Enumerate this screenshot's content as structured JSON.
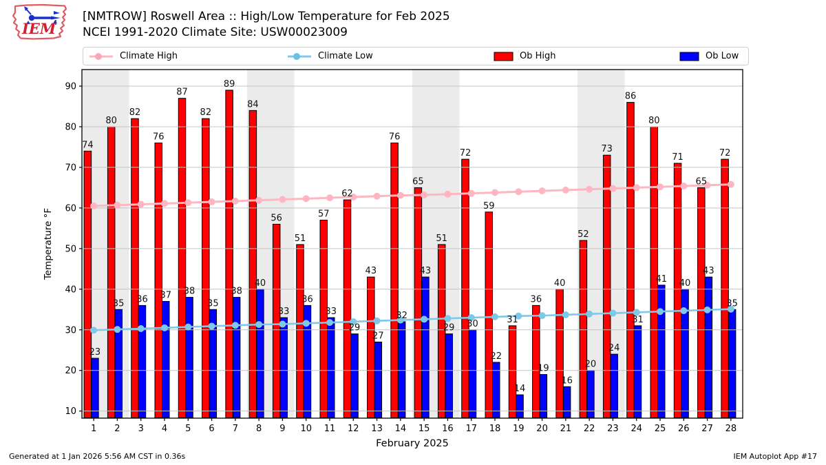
{
  "header": {
    "title_line1": "[NMTROW] Roswell Area :: High/Low Temperature for Feb 2025",
    "title_line2": "NCEI 1991-2020 Climate Site: USW00023009",
    "logo_text": "IEM"
  },
  "legend": {
    "items": [
      {
        "label": "Climate High",
        "swatch": "line-marker",
        "color": "#ffb6c1"
      },
      {
        "label": "Climate Low",
        "swatch": "line-marker",
        "color": "#7ec8e8"
      },
      {
        "label": "Ob High",
        "swatch": "rect",
        "color": "#ff0000"
      },
      {
        "label": "Ob Low",
        "swatch": "rect",
        "color": "#0000ff"
      }
    ]
  },
  "chart_data": {
    "type": "bar",
    "title": "[NMTROW] Roswell Area :: High/Low Temperature for Feb 2025",
    "subtitle": "NCEI 1991-2020 Climate Site: USW00023009",
    "xlabel": "February 2025",
    "ylabel": "Temperature °F",
    "x": [
      1,
      2,
      3,
      4,
      5,
      6,
      7,
      8,
      9,
      10,
      11,
      12,
      13,
      14,
      15,
      16,
      17,
      18,
      19,
      20,
      21,
      22,
      23,
      24,
      25,
      26,
      27,
      28
    ],
    "series": [
      {
        "name": "Ob High",
        "type": "bar",
        "color": "#ff0000",
        "values": [
          74,
          80,
          82,
          76,
          87,
          82,
          89,
          84,
          56,
          51,
          57,
          62,
          43,
          76,
          65,
          51,
          72,
          59,
          31,
          36,
          40,
          52,
          73,
          86,
          80,
          71,
          65,
          72
        ]
      },
      {
        "name": "Ob Low",
        "type": "bar",
        "color": "#0000ff",
        "values": [
          23,
          35,
          36,
          37,
          38,
          35,
          38,
          40,
          33,
          36,
          33,
          29,
          27,
          32,
          43,
          29,
          30,
          22,
          14,
          19,
          16,
          20,
          24,
          31,
          41,
          40,
          43,
          35
        ]
      },
      {
        "name": "Climate High",
        "type": "line",
        "color": "#ffb6c1",
        "values": [
          60.5,
          60.7,
          60.9,
          61.1,
          61.3,
          61.5,
          61.7,
          61.9,
          62.1,
          62.3,
          62.5,
          62.7,
          62.9,
          63.1,
          63.2,
          63.4,
          63.6,
          63.8,
          64.0,
          64.2,
          64.4,
          64.6,
          64.8,
          65.0,
          65.2,
          65.4,
          65.6,
          65.8
        ]
      },
      {
        "name": "Climate Low",
        "type": "line",
        "color": "#7ec8e8",
        "values": [
          29.9,
          30.1,
          30.3,
          30.5,
          30.7,
          30.9,
          31.1,
          31.3,
          31.4,
          31.6,
          31.8,
          32.0,
          32.2,
          32.4,
          32.6,
          32.8,
          33.0,
          33.2,
          33.4,
          33.5,
          33.7,
          33.9,
          34.1,
          34.3,
          34.5,
          34.7,
          34.9,
          35.1
        ]
      }
    ],
    "yticks": [
      10,
      20,
      30,
      40,
      50,
      60,
      70,
      80,
      90
    ],
    "xticks": [
      1,
      2,
      3,
      4,
      5,
      6,
      7,
      8,
      9,
      10,
      11,
      12,
      13,
      14,
      15,
      16,
      17,
      18,
      19,
      20,
      21,
      22,
      23,
      24,
      25,
      26,
      27,
      28
    ],
    "ylim": [
      8.25,
      94.07
    ],
    "xlim": [
      0.5,
      28.5
    ],
    "grid": "horizontal",
    "gridline_color": "#c4c4c4",
    "weekend_bands": [
      [
        0.5,
        2.5
      ],
      [
        7.5,
        9.5
      ],
      [
        14.5,
        16.5
      ],
      [
        21.5,
        23.5
      ]
    ],
    "band_color": "#ebebeb",
    "legend_position": "top",
    "show_value_labels": true
  },
  "footer": {
    "left": "Generated at 1 Jan 2026 5:56 AM CST in 0.36s",
    "right": "IEM Autoplot App #17"
  }
}
